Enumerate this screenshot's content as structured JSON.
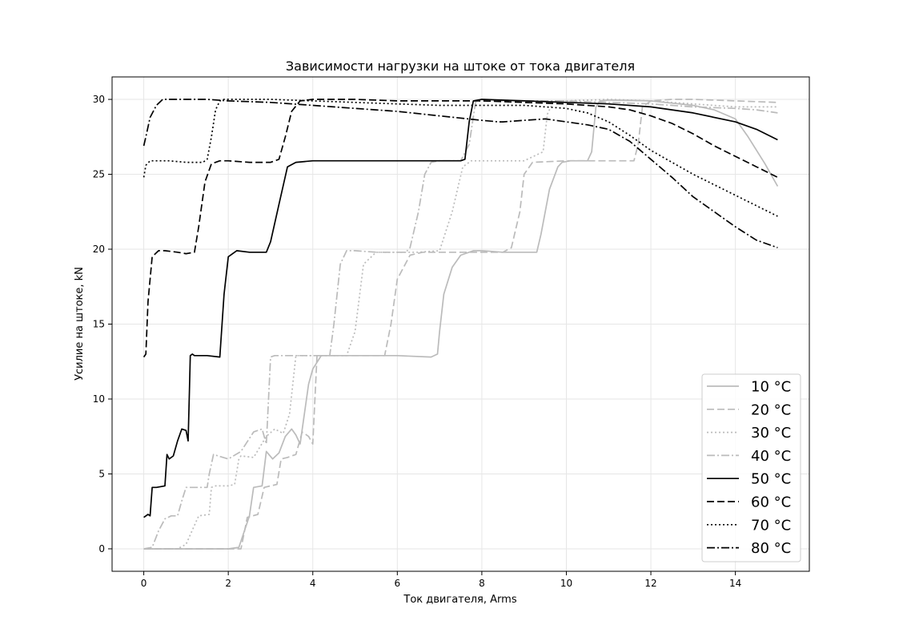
{
  "chart_data": {
    "type": "line",
    "title": "Зависимости нагрузки на штоке от тока двигателя",
    "xlabel": "Ток двигателя, Arms",
    "ylabel": "Усилие на штоке, kN",
    "xlim": [
      -0.75,
      15.75
    ],
    "ylim": [
      -1.5,
      31.5
    ],
    "xticks": [
      0,
      2,
      4,
      6,
      8,
      10,
      12,
      14
    ],
    "yticks": [
      0,
      5,
      10,
      15,
      20,
      25,
      30
    ],
    "grid": true,
    "legend_position": "lower-right",
    "series": [
      {
        "name": "10 °C",
        "color": "#bbbbbb",
        "dash": "solid",
        "x": [
          0,
          2.0,
          2.25,
          2.5,
          2.6,
          2.8,
          2.9,
          3.05,
          3.2,
          3.35,
          3.5,
          3.6,
          3.7,
          3.8,
          3.9,
          4.0,
          4.2,
          5.0,
          6.0,
          6.8,
          6.95,
          7.0,
          7.1,
          7.3,
          7.5,
          7.8,
          8.0,
          8.5,
          9.0,
          9.3,
          9.4,
          9.6,
          9.8,
          9.9,
          10.1,
          10.5,
          10.6,
          10.7,
          10.8,
          11.0,
          12.0,
          13.0,
          13.5,
          14.0,
          14.3,
          14.7,
          15.0
        ],
        "y": [
          0,
          0,
          0.1,
          2.2,
          4.1,
          4.2,
          6.5,
          6.0,
          6.4,
          7.5,
          8.0,
          7.6,
          7.0,
          9.0,
          11.0,
          12.0,
          12.9,
          12.9,
          12.9,
          12.8,
          13.0,
          14.5,
          17.0,
          18.8,
          19.6,
          19.9,
          19.9,
          19.8,
          19.8,
          19.8,
          21.0,
          24.0,
          25.5,
          25.8,
          25.9,
          25.9,
          26.5,
          29.5,
          29.9,
          29.95,
          29.9,
          29.6,
          29.3,
          28.7,
          27.5,
          25.7,
          24.2
        ]
      },
      {
        "name": "20 °C",
        "color": "#bbbbbb",
        "dash": "9,4",
        "x": [
          0,
          2.3,
          2.45,
          2.7,
          2.85,
          3.0,
          3.15,
          3.25,
          3.4,
          3.6,
          3.75,
          3.9,
          4.0,
          4.1,
          5.0,
          5.7,
          5.85,
          6.0,
          6.3,
          6.6,
          7.0,
          8.0,
          8.5,
          8.7,
          8.9,
          9.0,
          9.2,
          10.0,
          11.0,
          11.6,
          11.7,
          11.8,
          12.0,
          12.5,
          13.0,
          14.0,
          15.0
        ],
        "y": [
          0,
          0,
          2.1,
          2.3,
          4.1,
          4.2,
          4.3,
          6.0,
          6.1,
          6.3,
          7.8,
          7.5,
          7.0,
          12.9,
          12.9,
          12.9,
          15.0,
          18.0,
          19.6,
          19.8,
          19.8,
          19.8,
          19.8,
          20.1,
          22.5,
          25.0,
          25.8,
          25.9,
          25.9,
          25.9,
          27.0,
          29.5,
          29.9,
          30.0,
          30.0,
          29.9,
          29.8
        ]
      },
      {
        "name": "30 °C",
        "color": "#bbbbbb",
        "dash": "2,3",
        "x": [
          0,
          0.8,
          1.0,
          1.3,
          1.55,
          1.6,
          1.7,
          2.0,
          2.15,
          2.25,
          2.3,
          2.6,
          2.9,
          3.1,
          3.3,
          3.45,
          3.6,
          3.8,
          4.0,
          4.8,
          5.0,
          5.2,
          5.5,
          6.0,
          6.5,
          7.0,
          7.3,
          7.55,
          7.75,
          8.0,
          9.0,
          9.45,
          9.55,
          9.7,
          10.0,
          11.0,
          12.0,
          13.0,
          14.0,
          15.0
        ],
        "y": [
          0,
          0,
          0.3,
          2.2,
          2.3,
          4.1,
          4.2,
          4.2,
          4.3,
          6.0,
          6.2,
          6.1,
          7.5,
          8.0,
          7.7,
          9.0,
          12.9,
          12.9,
          12.9,
          12.9,
          14.5,
          19.0,
          19.8,
          19.8,
          19.8,
          19.9,
          22.5,
          25.5,
          25.9,
          25.9,
          25.9,
          26.5,
          29.0,
          29.9,
          29.9,
          30.0,
          29.9,
          29.7,
          29.5,
          29.5
        ]
      },
      {
        "name": "40 °C",
        "color": "#bbbbbb",
        "dash": "10,3,2,3",
        "x": [
          0,
          0.2,
          0.35,
          0.5,
          0.65,
          0.8,
          0.9,
          1.0,
          1.3,
          1.5,
          1.55,
          1.65,
          2.0,
          2.3,
          2.6,
          2.8,
          2.9,
          3.0,
          3.1,
          3.5,
          4.0,
          4.4,
          4.5,
          4.65,
          4.8,
          5.0,
          5.5,
          6.2,
          6.3,
          6.5,
          6.65,
          6.8,
          7.0,
          7.5,
          7.7,
          7.85,
          8.0,
          8.5,
          9.0,
          10.0,
          11.0,
          12.0,
          12.5,
          13.0,
          14.0,
          14.5,
          15.0
        ],
        "y": [
          0,
          0.1,
          1.2,
          2.0,
          2.2,
          2.2,
          3.2,
          4.1,
          4.1,
          4.1,
          5.0,
          6.3,
          6.0,
          6.5,
          7.8,
          8.0,
          7.0,
          12.8,
          12.9,
          12.9,
          12.9,
          12.9,
          15.0,
          19.0,
          19.9,
          19.9,
          19.8,
          19.8,
          20.1,
          22.5,
          25.0,
          25.8,
          25.9,
          25.9,
          27.0,
          29.8,
          29.9,
          29.9,
          29.9,
          29.9,
          29.8,
          29.7,
          29.6,
          29.5,
          29.4,
          29.3,
          29.1
        ]
      },
      {
        "name": "50 °C",
        "color": "#000000",
        "dash": "solid",
        "x": [
          0,
          0.1,
          0.15,
          0.2,
          0.25,
          0.3,
          0.5,
          0.55,
          0.6,
          0.7,
          0.8,
          0.9,
          1.0,
          1.05,
          1.08,
          1.1,
          1.15,
          1.2,
          1.5,
          1.8,
          1.9,
          2.0,
          2.2,
          2.5,
          2.9,
          3.0,
          3.2,
          3.4,
          3.6,
          4.0,
          5.0,
          6.0,
          7.5,
          7.6,
          7.7,
          7.8,
          8.0,
          9.0,
          10.0,
          11.0,
          12.0,
          13.0,
          14.0,
          14.5,
          15.0
        ],
        "y": [
          2.1,
          2.3,
          2.2,
          4.1,
          4.1,
          4.1,
          4.2,
          6.3,
          6.0,
          6.2,
          7.2,
          8.0,
          7.9,
          7.2,
          10.5,
          12.9,
          13.0,
          12.9,
          12.9,
          12.8,
          17.0,
          19.5,
          19.9,
          19.8,
          19.8,
          20.5,
          23.0,
          25.5,
          25.8,
          25.9,
          25.9,
          25.9,
          25.9,
          26.0,
          28.5,
          29.9,
          30.0,
          29.9,
          29.8,
          29.7,
          29.5,
          29.1,
          28.5,
          28.0,
          27.3
        ]
      },
      {
        "name": "60 °C",
        "color": "#000000",
        "dash": "9,4",
        "x": [
          0,
          0.05,
          0.1,
          0.2,
          0.35,
          0.5,
          0.8,
          1.0,
          1.2,
          1.3,
          1.45,
          1.6,
          1.8,
          2.0,
          2.5,
          3.0,
          3.2,
          3.35,
          3.5,
          3.7,
          4.0,
          5.0,
          6.0,
          7.0,
          8.0,
          9.0,
          10.0,
          11.0,
          11.5,
          12.0,
          12.5,
          13.0,
          13.5,
          14.0,
          14.5,
          15.0
        ],
        "y": [
          12.8,
          13.0,
          16.5,
          19.5,
          19.9,
          19.9,
          19.8,
          19.7,
          19.8,
          21.5,
          24.5,
          25.7,
          25.9,
          25.9,
          25.8,
          25.8,
          26.0,
          27.5,
          29.2,
          29.9,
          30.0,
          30.0,
          29.9,
          29.9,
          29.9,
          29.8,
          29.7,
          29.5,
          29.3,
          28.9,
          28.4,
          27.7,
          26.9,
          26.2,
          25.5,
          24.8
        ]
      },
      {
        "name": "70 °C",
        "color": "#000000",
        "dash": "2,3",
        "x": [
          0,
          0.05,
          0.15,
          0.3,
          0.6,
          1.0,
          1.4,
          1.5,
          1.6,
          1.7,
          1.8,
          1.9,
          2.0,
          2.5,
          3.0,
          4.0,
          5.0,
          6.0,
          7.0,
          8.0,
          9.0,
          10.0,
          10.5,
          11.0,
          11.5,
          12.0,
          12.5,
          13.0,
          13.5,
          14.0,
          14.5,
          15.0
        ],
        "y": [
          24.8,
          25.6,
          25.9,
          25.9,
          25.9,
          25.8,
          25.8,
          26.0,
          27.5,
          29.3,
          29.9,
          30.0,
          30.0,
          30.0,
          30.0,
          29.9,
          29.8,
          29.7,
          29.6,
          29.6,
          29.6,
          29.4,
          29.1,
          28.5,
          27.6,
          26.6,
          25.8,
          25.0,
          24.3,
          23.6,
          22.9,
          22.2
        ]
      },
      {
        "name": "80 °C",
        "color": "#000000",
        "dash": "10,3,2,3",
        "x": [
          0,
          0.05,
          0.15,
          0.3,
          0.45,
          0.6,
          1.0,
          1.5,
          2.0,
          3.0,
          4.0,
          5.0,
          6.0,
          7.0,
          8.0,
          8.4,
          8.5,
          9.0,
          9.5,
          10.0,
          10.5,
          11.0,
          11.5,
          12.0,
          12.5,
          13.0,
          13.5,
          14.0,
          14.5,
          15.0
        ],
        "y": [
          26.9,
          27.5,
          28.8,
          29.6,
          30.0,
          30.0,
          30.0,
          30.0,
          29.9,
          29.8,
          29.6,
          29.4,
          29.2,
          28.9,
          28.6,
          28.5,
          28.5,
          28.6,
          28.7,
          28.5,
          28.3,
          28.0,
          27.2,
          26.0,
          24.8,
          23.5,
          22.5,
          21.5,
          20.6,
          20.1
        ]
      }
    ]
  }
}
